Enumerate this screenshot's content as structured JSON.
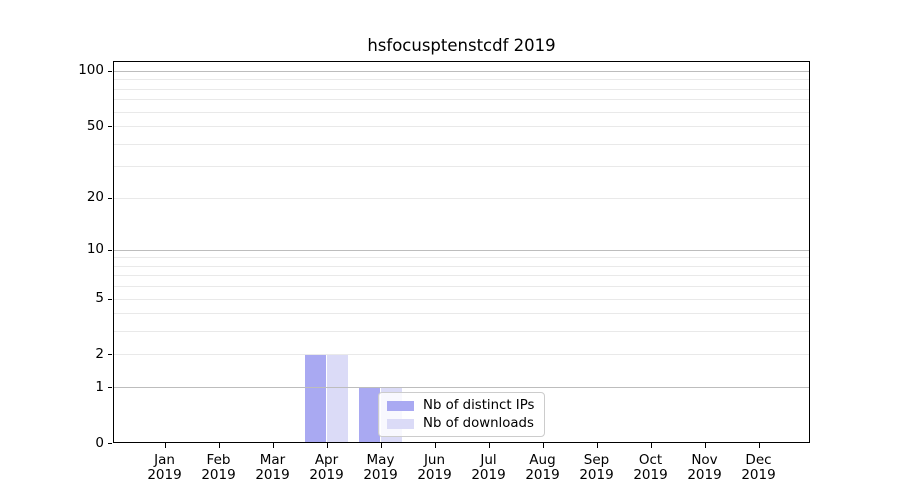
{
  "title": "hsfocusptenstcdf 2019",
  "chart_data": {
    "type": "bar",
    "categories": [
      "Jan",
      "Feb",
      "Mar",
      "Apr",
      "May",
      "Jun",
      "Jul",
      "Aug",
      "Sep",
      "Oct",
      "Nov",
      "Dec"
    ],
    "x_tick_year": "2019",
    "series": [
      {
        "name": "Nb of distinct IPs",
        "color": "#a9a9f2",
        "values": [
          0,
          0,
          0,
          2,
          1,
          0,
          0,
          0,
          0,
          0,
          0,
          0
        ]
      },
      {
        "name": "Nb of downloads",
        "color": "#dbdbf7",
        "values": [
          0,
          0,
          0,
          2,
          1,
          0,
          0,
          0,
          0,
          0,
          0,
          0
        ]
      }
    ],
    "yscale": "log1p",
    "ylim": [
      0,
      100
    ],
    "y_ticks": [
      0,
      1,
      2,
      5,
      10,
      20,
      50,
      100
    ],
    "y_major_gridlines": [
      1,
      10,
      100
    ],
    "y_minor_gridlines": [
      2,
      3,
      4,
      5,
      6,
      7,
      8,
      9,
      20,
      30,
      40,
      50,
      60,
      70,
      80,
      90
    ],
    "grid": true,
    "legend_position": "lower-center-inside",
    "colors": {
      "spine": "#000000",
      "major_grid": "#bdbdbd",
      "minor_grid": "#e9e9e9",
      "legend_border": "#cccccc"
    }
  }
}
